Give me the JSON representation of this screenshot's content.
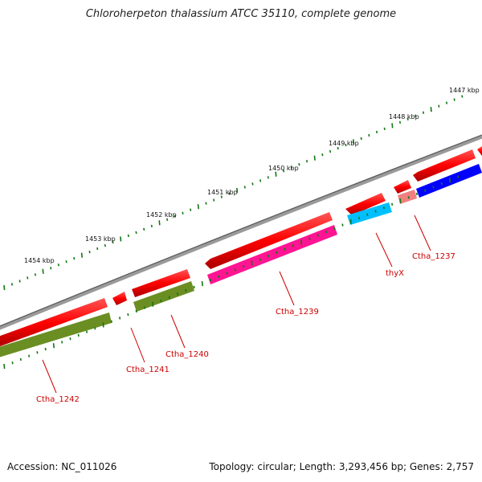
{
  "title": "Chloroherpeton thalassium ATCC 35110, complete genome",
  "accession_text": "Accession: NC_011026",
  "summary_text": "Topology: circular; Length: 3,293,456 bp; Genes: 2,757",
  "ruler_labels": [
    "1447 kbp",
    "1448 kbp",
    "1449 kbp",
    "1450 kbp",
    "1451 kbp",
    "1452 kbp",
    "1453 kbp",
    "1454 kbp"
  ],
  "gene_labels": [
    "Ctha_1237",
    "thyX",
    "Ctha_1239",
    "Ctha_1240",
    "Ctha_1241",
    "Ctha_1242"
  ],
  "colors": {
    "backbone": "#808080",
    "cds": "#ff0000",
    "label": "#cc0000",
    "ticks": "#117711",
    "olive": "#6b8e23",
    "magenta": "#ff1493",
    "cyan": "#00bfff",
    "blue": "#0000ff",
    "pink": "#f08080"
  }
}
